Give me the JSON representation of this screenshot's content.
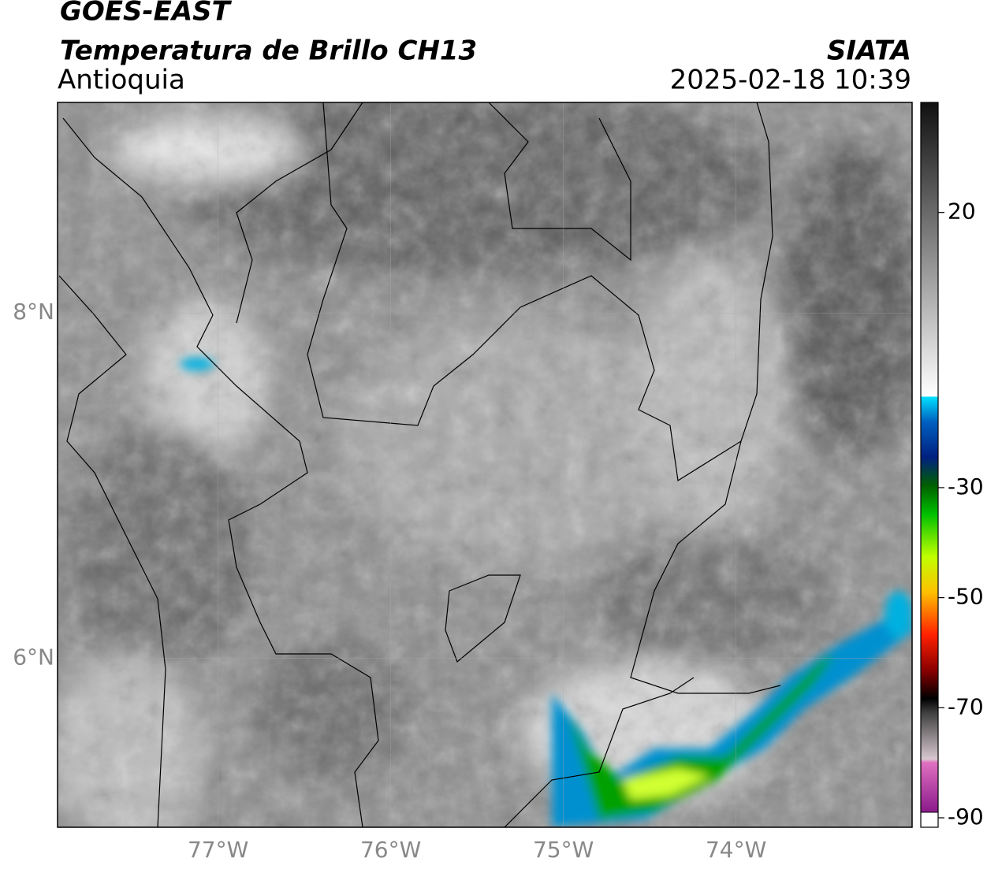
{
  "header": {
    "title": "GOES-EAST",
    "subtitle": "Temperatura de Brillo CH13",
    "region": "Antioquia",
    "source": "SIATA",
    "datetime": "2025-02-18 10:39"
  },
  "map": {
    "xlim": [
      -77.93,
      -72.98
    ],
    "ylim": [
      5.02,
      9.22
    ],
    "xticks": [
      {
        "value": -77,
        "label": "77°W"
      },
      {
        "value": -76,
        "label": "76°W"
      },
      {
        "value": -75,
        "label": "75°W"
      },
      {
        "value": -74,
        "label": "74°W"
      }
    ],
    "yticks": [
      {
        "value": 8,
        "label": "8°N"
      },
      {
        "value": 6,
        "label": "6°N"
      }
    ],
    "grid": true
  },
  "colorbar": {
    "lim": [
      -90,
      40
    ],
    "ticks": [
      20,
      -30,
      -50,
      -70,
      -90
    ]
  }
}
